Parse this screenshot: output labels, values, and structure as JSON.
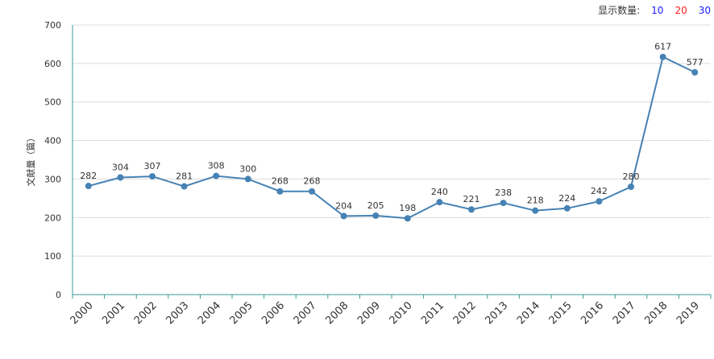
{
  "controls": {
    "display_count_label": "显示数量:",
    "options": [
      {
        "label": "10",
        "color": "#1a1aff"
      },
      {
        "label": "20",
        "color": "#ff1a1a"
      },
      {
        "label": "30",
        "color": "#1a1aff"
      }
    ]
  },
  "chart_data": {
    "type": "line",
    "title": "",
    "xlabel": "",
    "ylabel": "文献量（篇）",
    "ylim": [
      0,
      700
    ],
    "yticks": [
      0,
      100,
      200,
      300,
      400,
      500,
      600,
      700
    ],
    "categories": [
      "2000",
      "2001",
      "2002",
      "2003",
      "2004",
      "2005",
      "2006",
      "2007",
      "2008",
      "2009",
      "2010",
      "2011",
      "2012",
      "2013",
      "2014",
      "2015",
      "2016",
      "2017",
      "2018",
      "2019"
    ],
    "series": [
      {
        "name": "文献量",
        "color": "#4682b4",
        "values": [
          282,
          304,
          307,
          281,
          308,
          300,
          268,
          268,
          204,
          205,
          198,
          240,
          221,
          238,
          218,
          224,
          242,
          280,
          617,
          577
        ]
      }
    ],
    "grid": true,
    "axis_color": "#3a9a9a"
  }
}
